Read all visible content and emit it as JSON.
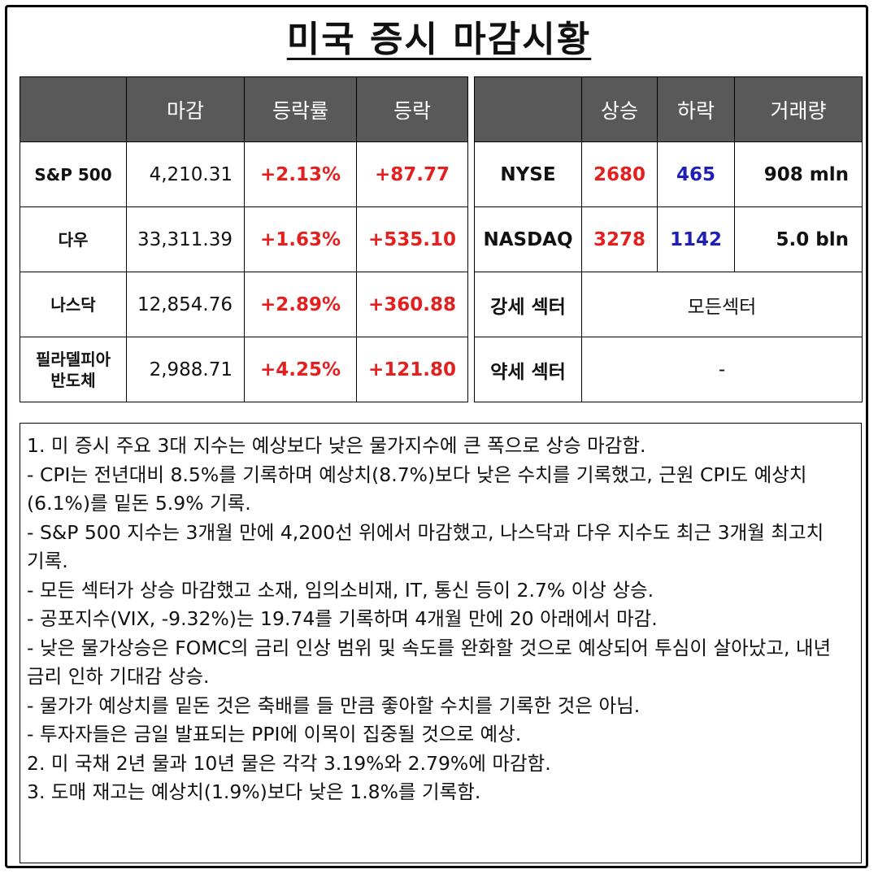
{
  "title": "미국 증시 마감시황",
  "indices": {
    "headers": [
      "",
      "마감",
      "등락률",
      "등락"
    ],
    "rows": [
      {
        "name": "S&P 500",
        "close": "4,210.31",
        "pct": "+2.13%",
        "change": "+87.77"
      },
      {
        "name": "다우",
        "close": "33,311.39",
        "pct": "+1.63%",
        "change": "+535.10"
      },
      {
        "name": "나스닥",
        "close": "12,854.76",
        "pct": "+2.89%",
        "change": "+360.88"
      },
      {
        "name": "필라델피아\n반도체",
        "close": "2,988.71",
        "pct": "+4.25%",
        "change": "+121.80"
      }
    ]
  },
  "breadth": {
    "headers": [
      "",
      "상승",
      "하락",
      "거래량"
    ],
    "rows": [
      {
        "exchange": "NYSE",
        "advance": "2680",
        "decline": "465",
        "volume": "908 mln"
      },
      {
        "exchange": "NASDAQ",
        "advance": "3278",
        "decline": "1142",
        "volume": "5.0 bln"
      }
    ],
    "strong_sector": {
      "label": "강세 섹터",
      "value": "모든섹터"
    },
    "weak_sector": {
      "label": "약세 섹터",
      "value": "-"
    }
  },
  "notes": [
    "1. 미 증시 주요 3대 지수는 예상보다 낮은 물가지수에 큰 폭으로 상승 마감함.",
    "- CPI는 전년대비 8.5%를 기록하며 예상치(8.7%)보다 낮은 수치를 기록했고, 근원 CPI도 예상치(6.1%)를 밑돈 5.9% 기록.",
    "- S&P 500 지수는 3개월 만에 4,200선 위에서 마감했고, 나스닥과 다우 지수도 최근 3개월 최고치 기록.",
    "- 모든 섹터가 상승 마감했고 소재, 임의소비재, IT, 통신 등이 2.7% 이상 상승.",
    "- 공포지수(VIX, -9.32%)는 19.74를 기록하며 4개월 만에 20 아래에서 마감.",
    "- 낮은 물가상승은 FOMC의 금리 인상 범위 및 속도를 완화할 것으로 예상되어 투심이 살아났고, 내년 금리 인하 기대감 상승.",
    "- 물가가 예상치를 밑돈 것은 축배를 들 만큼 좋아할 수치를 기록한 것은 아님.",
    "- 투자자들은 금일 발표되는 PPI에 이목이 집중될 것으로 예상.",
    "2. 미 국채 2년 물과 10년 물은 각각 3.19%와 2.79%에 마감함.",
    "3. 도매 재고는 예상치(1.9%)보다 낮은 1.8%를 기록함."
  ],
  "colors": {
    "up": "#e22020",
    "down": "#1f1fb4",
    "header_bg": "#595959"
  }
}
